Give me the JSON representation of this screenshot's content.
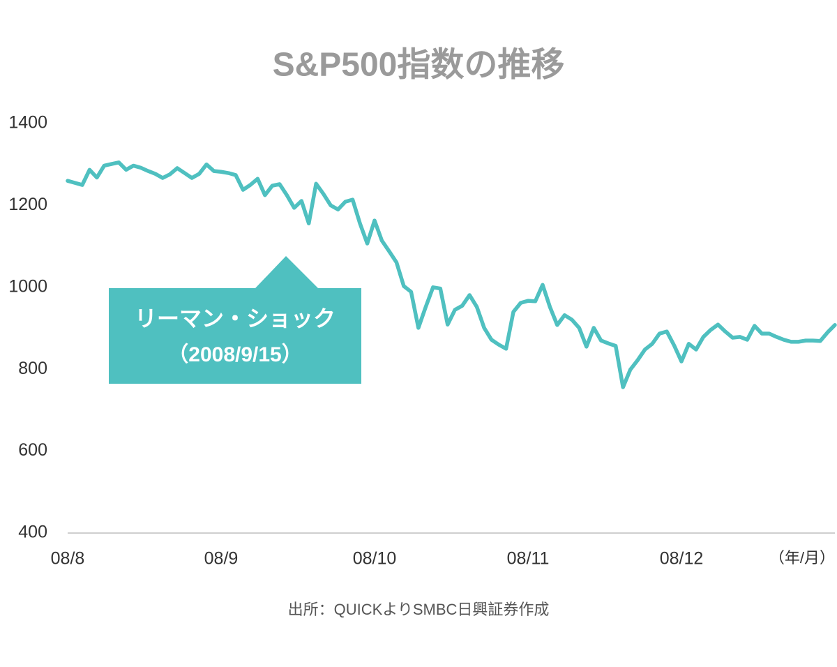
{
  "chart_data": {
    "type": "line",
    "title": "S&P500指数の推移",
    "x_label": "（年/月）",
    "source": "出所：QUICKよりSMBC日興証券作成",
    "annotation": {
      "text": "リーマン・ショック",
      "date": "（2008/9/15）"
    },
    "color": "#4fc0c0",
    "ylim": [
      400,
      1400
    ],
    "yticks": [
      400,
      600,
      800,
      1000,
      1200,
      1400
    ],
    "grid": false,
    "categories": [
      "08/8",
      null,
      null,
      null,
      null,
      null,
      null,
      null,
      null,
      null,
      null,
      null,
      null,
      null,
      null,
      null,
      null,
      null,
      null,
      null,
      null,
      "08/9",
      null,
      null,
      null,
      null,
      null,
      null,
      null,
      null,
      null,
      null,
      null,
      null,
      null,
      null,
      null,
      null,
      null,
      null,
      null,
      null,
      "08/10",
      null,
      null,
      null,
      null,
      null,
      null,
      null,
      null,
      null,
      null,
      null,
      null,
      null,
      null,
      null,
      null,
      null,
      null,
      null,
      null,
      "08/11",
      null,
      null,
      null,
      null,
      null,
      null,
      null,
      null,
      null,
      null,
      null,
      null,
      null,
      null,
      null,
      null,
      null,
      null,
      null,
      null,
      "08/12",
      null,
      null,
      null,
      null,
      null,
      null,
      null,
      null,
      null,
      null,
      null,
      null,
      null,
      null,
      null,
      null,
      null,
      null,
      null,
      null,
      null
    ],
    "values": [
      1260,
      1255,
      1250,
      1287,
      1268,
      1297,
      1301,
      1305,
      1287,
      1297,
      1292,
      1284,
      1277,
      1267,
      1276,
      1291,
      1279,
      1267,
      1277,
      1300,
      1284,
      1282,
      1279,
      1274,
      1238,
      1250,
      1265,
      1225,
      1248,
      1252,
      1225,
      1194,
      1211,
      1156,
      1253,
      1228,
      1200,
      1190,
      1209,
      1214,
      1156,
      1107,
      1163,
      1114,
      1088,
      1061,
      1003,
      989,
      901,
      952,
      1000,
      997,
      909,
      945,
      955,
      981,
      952,
      901,
      872,
      860,
      850,
      940,
      962,
      967,
      966,
      1006,
      952,
      908,
      932,
      921,
      901,
      855,
      901,
      870,
      863,
      857,
      756,
      799,
      822,
      848,
      862,
      887,
      892,
      858,
      819,
      862,
      848,
      879,
      896,
      909,
      892,
      877,
      879,
      872,
      906,
      887,
      887,
      879,
      872,
      867,
      867,
      870,
      870,
      869,
      890,
      908
    ]
  }
}
